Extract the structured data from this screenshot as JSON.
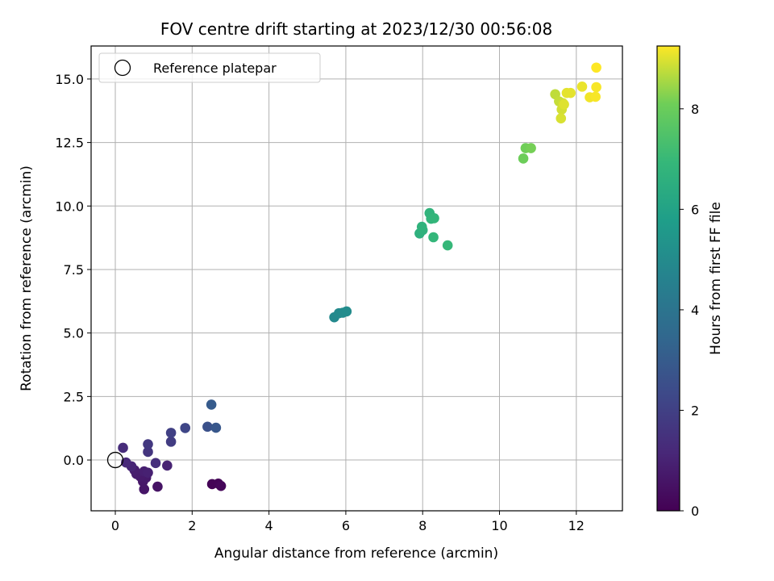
{
  "chart_data": {
    "type": "scatter",
    "title": "FOV centre drift starting at 2023/12/30 00:56:08",
    "xlabel": "Angular distance from reference (arcmin)",
    "ylabel": "Rotation from reference (arcmin)",
    "xlim": [
      -0.63,
      13.2
    ],
    "ylim": [
      -2.0,
      16.3
    ],
    "xticks": [
      0,
      2,
      4,
      6,
      8,
      10,
      12
    ],
    "xtick_labels": [
      "0",
      "2",
      "4",
      "6",
      "8",
      "10",
      "12"
    ],
    "yticks": [
      0.0,
      2.5,
      5.0,
      7.5,
      10.0,
      12.5,
      15.0
    ],
    "ytick_labels": [
      "0.0",
      "2.5",
      "5.0",
      "7.5",
      "10.0",
      "12.5",
      "15.0"
    ],
    "grid": true,
    "legend": {
      "placement": "upper-left",
      "entries": [
        {
          "label": "Reference platepar",
          "marker": "open-circle"
        }
      ]
    },
    "reference_point": {
      "x": 0.0,
      "y": 0.0
    },
    "colorbar": {
      "label": "Hours from first FF file",
      "colormap": "viridis",
      "range": [
        0,
        9.25
      ],
      "ticks": [
        0,
        2,
        4,
        6,
        8
      ],
      "tick_labels": [
        "0",
        "2",
        "4",
        "6",
        "8"
      ]
    },
    "points": [
      {
        "x": 2.52,
        "y": -0.95,
        "c": 0.05
      },
      {
        "x": 2.68,
        "y": -0.93,
        "c": 0.1
      },
      {
        "x": 2.75,
        "y": -1.02,
        "c": 0.15
      },
      {
        "x": 1.1,
        "y": -1.05,
        "c": 0.55
      },
      {
        "x": 0.75,
        "y": -1.15,
        "c": 0.6
      },
      {
        "x": 0.72,
        "y": -0.85,
        "c": 0.65
      },
      {
        "x": 0.8,
        "y": -0.7,
        "c": 0.7
      },
      {
        "x": 0.65,
        "y": -0.65,
        "c": 0.75
      },
      {
        "x": 0.55,
        "y": -0.55,
        "c": 0.8
      },
      {
        "x": 0.5,
        "y": -0.4,
        "c": 0.85
      },
      {
        "x": 0.75,
        "y": -0.45,
        "c": 0.9
      },
      {
        "x": 0.85,
        "y": -0.5,
        "c": 0.95
      },
      {
        "x": 1.35,
        "y": -0.22,
        "c": 1.0
      },
      {
        "x": 0.42,
        "y": -0.25,
        "c": 1.1
      },
      {
        "x": 0.28,
        "y": -0.1,
        "c": 1.2
      },
      {
        "x": 0.2,
        "y": 0.48,
        "c": 1.3
      },
      {
        "x": 1.05,
        "y": -0.12,
        "c": 1.4
      },
      {
        "x": 0.85,
        "y": 0.32,
        "c": 1.6
      },
      {
        "x": 0.85,
        "y": 0.62,
        "c": 1.7
      },
      {
        "x": 1.45,
        "y": 0.72,
        "c": 1.85
      },
      {
        "x": 1.45,
        "y": 1.07,
        "c": 2.0
      },
      {
        "x": 1.82,
        "y": 1.26,
        "c": 2.2
      },
      {
        "x": 2.4,
        "y": 1.31,
        "c": 2.6
      },
      {
        "x": 2.62,
        "y": 1.27,
        "c": 2.85
      },
      {
        "x": 2.5,
        "y": 2.18,
        "c": 3.0
      },
      {
        "x": 5.7,
        "y": 5.62,
        "c": 4.9
      },
      {
        "x": 5.82,
        "y": 5.78,
        "c": 4.95
      },
      {
        "x": 5.92,
        "y": 5.8,
        "c": 5.0
      },
      {
        "x": 6.02,
        "y": 5.85,
        "c": 5.05
      },
      {
        "x": 7.92,
        "y": 8.92,
        "c": 6.6
      },
      {
        "x": 8.0,
        "y": 9.05,
        "c": 6.65
      },
      {
        "x": 7.98,
        "y": 9.18,
        "c": 6.7
      },
      {
        "x": 8.18,
        "y": 9.72,
        "c": 6.75
      },
      {
        "x": 8.22,
        "y": 9.5,
        "c": 6.8
      },
      {
        "x": 8.3,
        "y": 9.52,
        "c": 6.85
      },
      {
        "x": 8.28,
        "y": 8.77,
        "c": 6.9
      },
      {
        "x": 8.65,
        "y": 8.45,
        "c": 6.95
      },
      {
        "x": 10.62,
        "y": 11.87,
        "c": 8.05
      },
      {
        "x": 10.68,
        "y": 12.28,
        "c": 8.1
      },
      {
        "x": 10.82,
        "y": 12.28,
        "c": 8.15
      },
      {
        "x": 11.45,
        "y": 14.4,
        "c": 8.75
      },
      {
        "x": 11.55,
        "y": 14.12,
        "c": 8.8
      },
      {
        "x": 11.65,
        "y": 14.05,
        "c": 8.85
      },
      {
        "x": 11.62,
        "y": 13.8,
        "c": 8.9
      },
      {
        "x": 11.6,
        "y": 13.45,
        "c": 8.95
      },
      {
        "x": 11.68,
        "y": 14.0,
        "c": 9.0
      },
      {
        "x": 11.75,
        "y": 14.45,
        "c": 9.05
      },
      {
        "x": 11.85,
        "y": 14.45,
        "c": 9.05
      },
      {
        "x": 12.15,
        "y": 14.7,
        "c": 9.1
      },
      {
        "x": 12.35,
        "y": 14.28,
        "c": 9.15
      },
      {
        "x": 12.5,
        "y": 14.3,
        "c": 9.2
      },
      {
        "x": 12.52,
        "y": 14.68,
        "c": 9.2
      },
      {
        "x": 12.52,
        "y": 15.45,
        "c": 9.25
      }
    ]
  }
}
